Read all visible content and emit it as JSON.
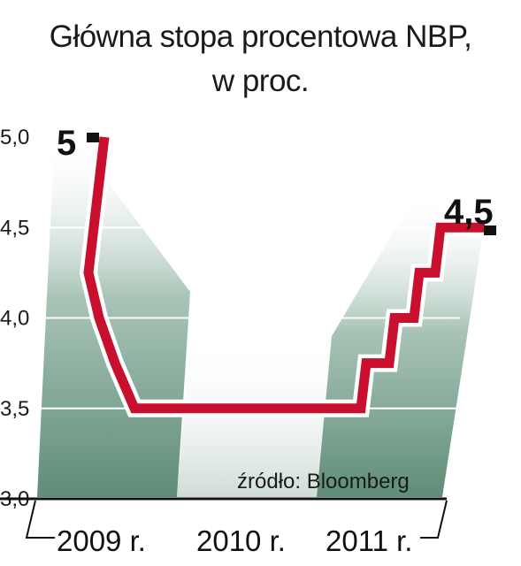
{
  "chart_data": {
    "type": "line",
    "title": "Główna stopa procentowa NBP,",
    "subtitle": "w proc.",
    "yticks": [
      "5,0",
      "4,5",
      "4,0",
      "3,5",
      "3,0"
    ],
    "ytick_values": [
      5.0,
      4.5,
      4.0,
      3.5,
      3.0
    ],
    "ylim": [
      3.0,
      5.0
    ],
    "years": [
      "2009 r.",
      "2010 r.",
      "2011 r."
    ],
    "source": "źródło: Bloomberg",
    "start_label": "5",
    "end_label": "4,5",
    "series": [
      {
        "values": [
          5.0,
          4.25,
          4.0,
          3.75,
          3.5,
          3.5,
          3.5,
          3.75,
          4.0,
          4.25,
          4.5,
          4.5
        ]
      }
    ],
    "colors": {
      "line": "#c8102e",
      "line_outline": "#ffffff",
      "panel_dark": "#6f9a86",
      "panel_light": "#e6ede9",
      "marker": "#111111"
    }
  }
}
